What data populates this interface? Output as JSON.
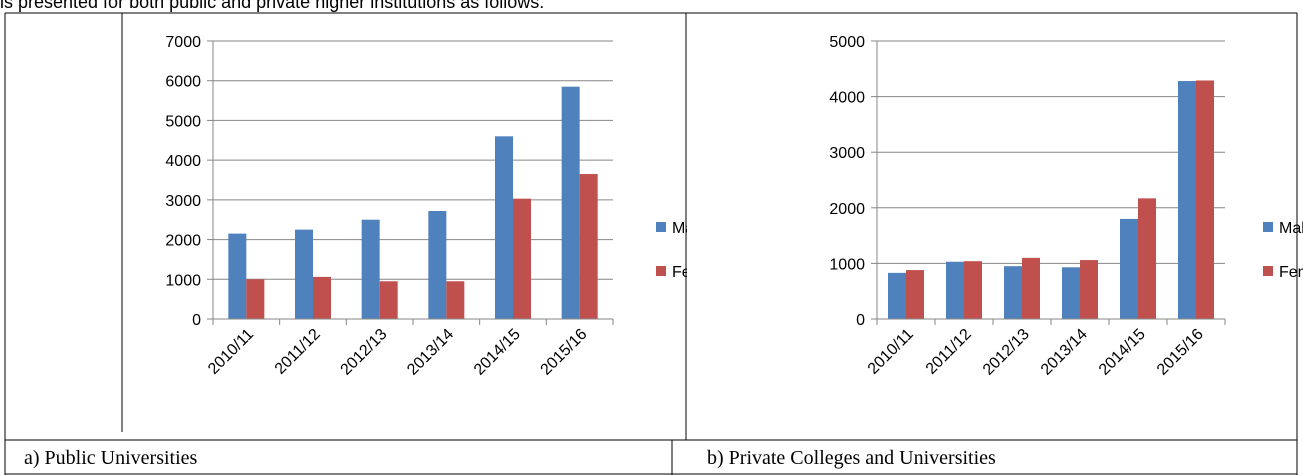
{
  "text": "is presented for both public and private higher institutions as follows:",
  "captions": [
    "a)  Public Universities",
    "b)  Private Colleges and Universities"
  ],
  "chart_data": [
    {
      "type": "bar",
      "categories": [
        "2010/11",
        "2011/12",
        "2012/13",
        "2013/14",
        "2014/15",
        "2015/16"
      ],
      "series": [
        {
          "name": "Male",
          "color": "#4f81bd",
          "values": [
            2150,
            2250,
            2500,
            2720,
            4600,
            5850
          ]
        },
        {
          "name": "Female",
          "color": "#c0504d",
          "values": [
            1000,
            1060,
            950,
            950,
            3030,
            3650
          ]
        }
      ],
      "ylim": [
        0,
        7000
      ],
      "yticks": [
        0,
        1000,
        2000,
        3000,
        4000,
        5000,
        6000,
        7000
      ],
      "grid": true,
      "legend": "right"
    },
    {
      "type": "bar",
      "categories": [
        "2010/11",
        "2011/12",
        "2012/13",
        "2013/14",
        "2014/15",
        "2015/16"
      ],
      "series": [
        {
          "name": "Male",
          "color": "#4f81bd",
          "values": [
            830,
            1030,
            950,
            930,
            1800,
            4280
          ]
        },
        {
          "name": "Female",
          "color": "#c0504d",
          "values": [
            880,
            1040,
            1100,
            1060,
            2170,
            4290
          ]
        }
      ],
      "ylim": [
        0,
        5000
      ],
      "yticks": [
        0,
        1000,
        2000,
        3000,
        4000,
        5000
      ],
      "grid": true,
      "legend": "right"
    }
  ]
}
